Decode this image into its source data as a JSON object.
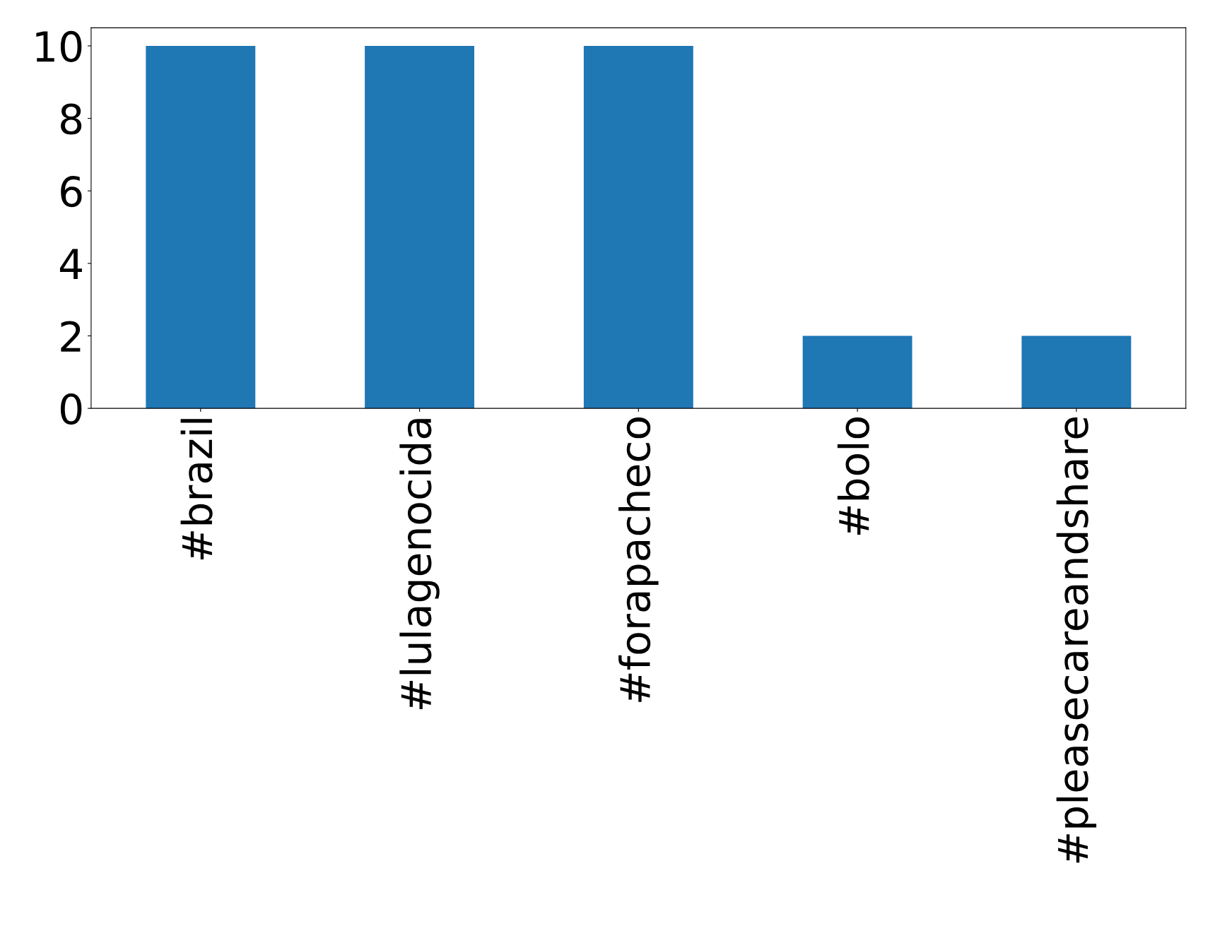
{
  "chart_data": {
    "type": "bar",
    "categories": [
      "#brazil",
      "#lulagenocida",
      "#forapacheco",
      "#bolo",
      "#pleasecareandshare"
    ],
    "values": [
      10,
      10,
      10,
      2,
      2
    ],
    "color": "#1f77b4",
    "ylim": [
      0,
      10.5
    ],
    "yticks": [
      0,
      2,
      4,
      6,
      8,
      10
    ],
    "grid": false
  }
}
